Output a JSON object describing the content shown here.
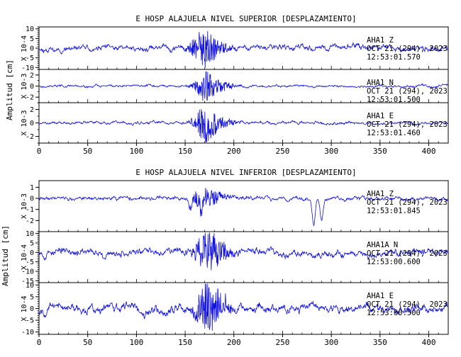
{
  "sections": [
    {
      "title": "E HOSP ALAJUELA NIVEL SUPERIOR [DESPLAZAMIENTO]",
      "ylabel": "Amplitud [cm]",
      "x_ticks": [
        "0",
        "50",
        "100",
        "150",
        "200",
        "250",
        "300",
        "350",
        "400"
      ],
      "panels": [
        {
          "scale": "X 10-4",
          "yticks": [
            "10",
            "5",
            "0",
            "-5",
            "-10"
          ],
          "ylim": [
            -11,
            11
          ],
          "ann1": "AHA1  Z",
          "ann2": "OCT 21 (294), 2023",
          "ann3": "12:53:01.570"
        },
        {
          "scale": "X 10-3",
          "yticks": [
            "2",
            "0",
            "-2"
          ],
          "ylim": [
            -3,
            3
          ],
          "ann1": "AHA1  N",
          "ann2": "OCT 21 (294), 2023",
          "ann3": "12:53:01.500"
        },
        {
          "scale": "X 10-3",
          "yticks": [
            "2",
            "0",
            "-2"
          ],
          "ylim": [
            -3,
            3
          ],
          "ann1": "AHA1  E",
          "ann2": "OCT 21 (294), 2023",
          "ann3": "12:53:01.460"
        }
      ]
    },
    {
      "title": "E HOSP ALAJUELA NIVEL INFERIOR [DESPLAZAMIENTO]",
      "ylabel": "Amplitud [cm]",
      "x_ticks": [
        "0",
        "50",
        "100",
        "150",
        "200",
        "250",
        "300",
        "350",
        "400"
      ],
      "panels": [
        {
          "scale": "X 10-3",
          "yticks": [
            "1",
            "0",
            "-1",
            "-2"
          ],
          "ylim": [
            -3,
            1.6
          ],
          "ann1": "AHA1  Z",
          "ann2": "OCT 21 (294), 2023",
          "ann3": "12:53:01.845"
        },
        {
          "scale": "X 10-4",
          "yticks": [
            "10",
            "5",
            "0",
            "-5",
            "-10",
            "-15"
          ],
          "ylim": [
            -16,
            11
          ],
          "ann1": "AHA1A  N",
          "ann2": "OCT 21 (294), 2023",
          "ann3": "12:53:00.600"
        },
        {
          "scale": "X 10-4",
          "yticks": [
            "10",
            "5",
            "0",
            "-5",
            "-10"
          ],
          "ylim": [
            -11,
            11
          ],
          "ann1": "AHA1  E",
          "ann2": "OCT 21 (294), 2023",
          "ann3": "12:53:00.500"
        }
      ]
    }
  ],
  "chart_data": {
    "type": "line",
    "xlim": [
      0,
      420
    ],
    "line_color": "#1010e0",
    "axis_color": "#000000",
    "series": [
      {
        "section": 0,
        "panel": 0,
        "noise": 3.0,
        "event_amp": 9.0,
        "event_center": 168,
        "event_width": 12,
        "seed": 11
      },
      {
        "section": 0,
        "panel": 1,
        "noise": 0.45,
        "event_amp": 2.6,
        "event_center": 170,
        "event_width": 10,
        "seed": 23
      },
      {
        "section": 0,
        "panel": 2,
        "noise": 0.45,
        "event_amp": 2.6,
        "event_center": 170,
        "event_width": 10,
        "seed": 37
      },
      {
        "section": 1,
        "panel": 0,
        "noise": 0.35,
        "event_amp": 0.9,
        "event_center": 168,
        "event_width": 12,
        "seed": 41,
        "dips": [
          [
            155,
            0.9
          ],
          [
            167,
            1.4
          ],
          [
            282,
            2.5
          ],
          [
            290,
            2.0
          ]
        ]
      },
      {
        "section": 1,
        "panel": 1,
        "noise": 4.0,
        "event_amp": 11.0,
        "event_center": 172,
        "event_width": 11,
        "seed": 53
      },
      {
        "section": 1,
        "panel": 2,
        "noise": 3.8,
        "event_amp": 10.0,
        "event_center": 172,
        "event_width": 11,
        "seed": 67
      }
    ]
  }
}
